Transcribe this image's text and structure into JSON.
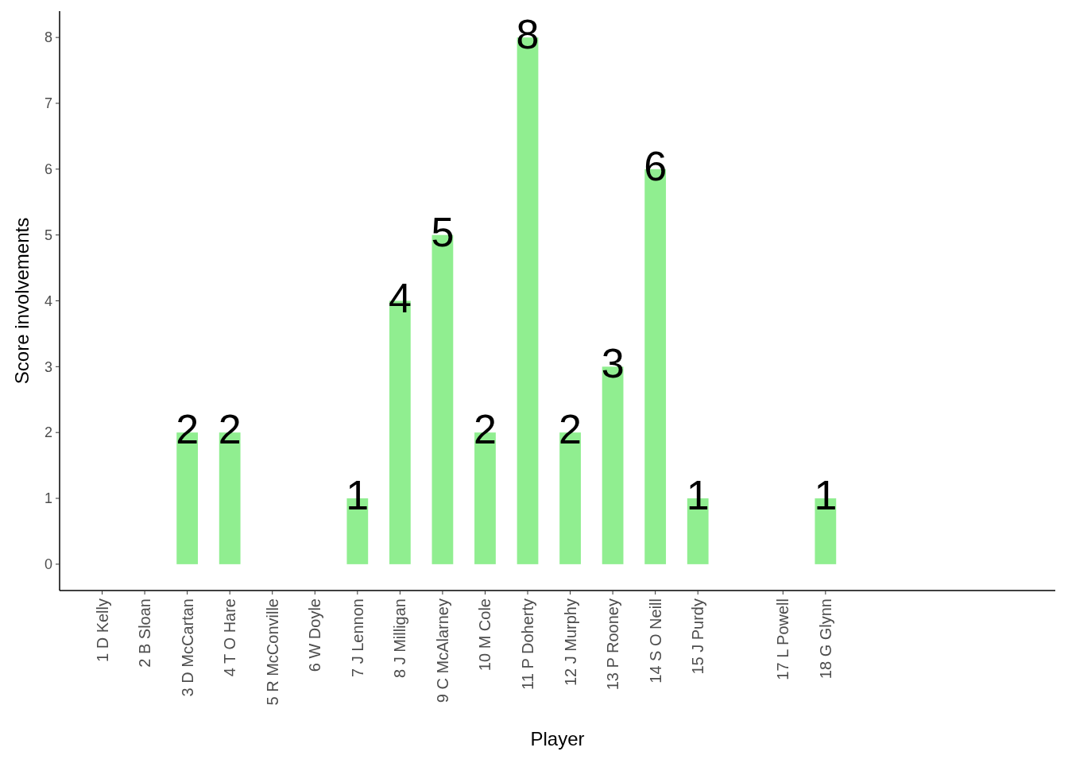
{
  "chart_data": {
    "type": "bar",
    "xlabel": "Player",
    "ylabel": "Score involvements",
    "categories": [
      "1 D Kelly",
      "2 B Sloan",
      "3 D McCartan",
      "4 T O Hare",
      "5 R McConville",
      "6 W Doyle",
      "7 J Lennon",
      "8 J Milligan",
      "9 C McAlarney",
      "10 M Cole",
      "11 P Doherty",
      "12 J Murphy",
      "13 P Rooney",
      "14 S O Neill",
      "15 J Purdy",
      null,
      "17 L Powell",
      "18 G Glynn"
    ],
    "values": [
      null,
      null,
      2,
      2,
      null,
      null,
      1,
      4,
      5,
      2,
      8,
      2,
      3,
      6,
      1,
      null,
      null,
      1
    ],
    "color": "#90ee90",
    "ylim": [
      -0.4,
      8.4
    ],
    "yticks": [
      0,
      1,
      2,
      3,
      4,
      5,
      6,
      7,
      8
    ],
    "grid": false,
    "data_labels": true
  }
}
